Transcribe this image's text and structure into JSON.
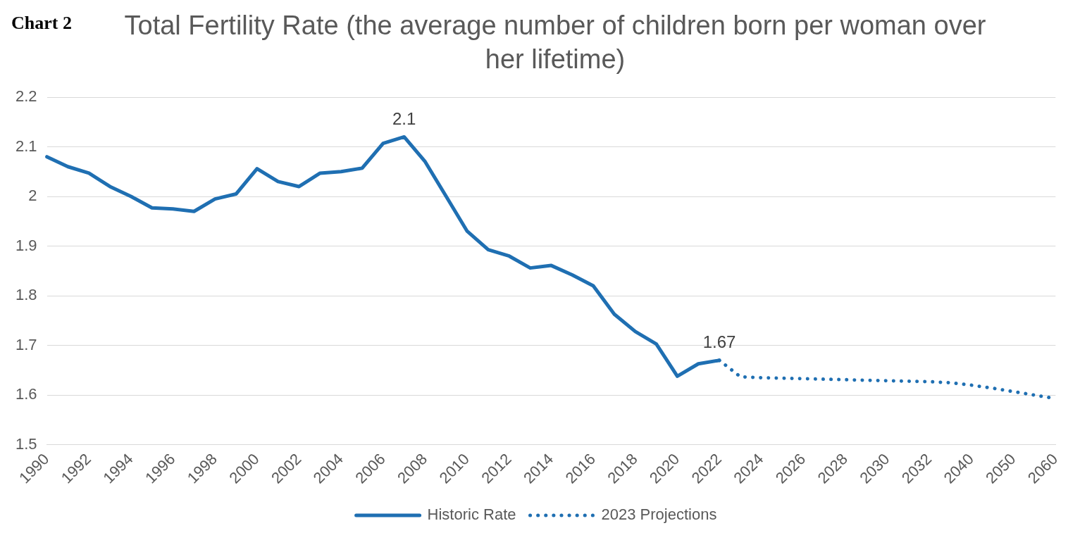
{
  "chart_data": {
    "type": "line",
    "title": "Total Fertility Rate (the average number of children born per woman over her lifetime)",
    "annotations": [
      "Chart 2"
    ],
    "categories": [
      "1990",
      null,
      "1992",
      null,
      "1994",
      null,
      "1996",
      null,
      "1998",
      null,
      "2000",
      null,
      "2002",
      null,
      "2004",
      null,
      "2006",
      null,
      "2008",
      null,
      "2010",
      null,
      "2012",
      null,
      "2014",
      null,
      "2016",
      null,
      "2018",
      null,
      "2020",
      null,
      "2022",
      null,
      "2024",
      null,
      "2026",
      null,
      "2028",
      null,
      "2030",
      null,
      "2032",
      null,
      "2040",
      null,
      "2050",
      null,
      "2060"
    ],
    "series": [
      {
        "name": "Historic Rate",
        "color": "#1f6fb2",
        "line_style": "solid",
        "values": [
          2.08,
          2.06,
          2.047,
          2.02,
          2.0,
          1.977,
          1.975,
          1.97,
          1.995,
          2.005,
          2.056,
          2.03,
          2.02,
          2.047,
          2.05,
          2.057,
          2.107,
          2.12,
          2.07,
          2.0,
          1.93,
          1.893,
          1.88,
          1.856,
          1.861,
          1.842,
          1.82,
          1.763,
          1.728,
          1.703,
          1.638,
          1.663,
          1.67,
          null,
          null,
          null,
          null,
          null,
          null,
          null,
          null,
          null,
          null,
          null,
          null,
          null,
          null,
          null,
          null
        ],
        "value_labels": [
          null,
          null,
          null,
          null,
          null,
          null,
          null,
          null,
          null,
          null,
          null,
          null,
          null,
          null,
          null,
          null,
          null,
          "2.1",
          null,
          null,
          null,
          null,
          null,
          null,
          null,
          null,
          null,
          null,
          null,
          null,
          null,
          null,
          "1.67",
          null,
          null,
          null,
          null,
          null,
          null,
          null,
          null,
          null,
          null,
          null,
          null,
          null,
          null,
          null,
          null
        ]
      },
      {
        "name": "2023 Projections",
        "color": "#1f6fb2",
        "line_style": "dotted",
        "values": [
          null,
          null,
          null,
          null,
          null,
          null,
          null,
          null,
          null,
          null,
          null,
          null,
          null,
          null,
          null,
          null,
          null,
          null,
          null,
          null,
          null,
          null,
          null,
          null,
          null,
          null,
          null,
          null,
          null,
          null,
          null,
          null,
          1.67,
          1.637,
          1.635,
          1.634,
          1.633,
          1.632,
          1.631,
          1.63,
          1.629,
          1.628,
          1.627,
          1.625,
          1.62,
          1.614,
          1.607,
          1.6,
          1.593
        ]
      }
    ],
    "ylim": [
      1.5,
      2.2
    ],
    "yticks": [
      1.5,
      1.6,
      1.7,
      1.8,
      1.9,
      2,
      2.1,
      2.2
    ],
    "grid": "y",
    "legend": "bottom",
    "marker": "none"
  }
}
